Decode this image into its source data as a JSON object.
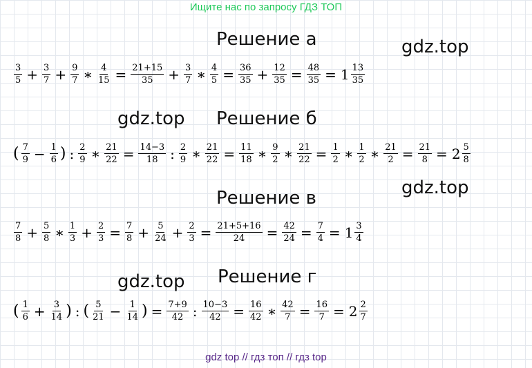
{
  "header_link": "Ищите нас по запросу ГДЗ ТОП",
  "watermark": "gdz.top",
  "footer": "gdz top  //  гдз топ  //  гдз top",
  "sections": [
    {
      "title": "Решение а",
      "equation": [
        {
          "f": [
            "3",
            "5"
          ]
        },
        {
          "o": "+"
        },
        {
          "f": [
            "3",
            "7"
          ]
        },
        {
          "o": "+"
        },
        {
          "f": [
            "9",
            "7"
          ]
        },
        {
          "o": "∗"
        },
        {
          "f": [
            "4",
            "15"
          ]
        },
        {
          "o": "="
        },
        {
          "f": [
            "21+15",
            "35"
          ]
        },
        {
          "o": "+"
        },
        {
          "f": [
            "3",
            "7"
          ]
        },
        {
          "o": "∗"
        },
        {
          "f": [
            "4",
            "5"
          ]
        },
        {
          "o": "="
        },
        {
          "f": [
            "36",
            "35"
          ]
        },
        {
          "o": "+"
        },
        {
          "f": [
            "12",
            "35"
          ]
        },
        {
          "o": "="
        },
        {
          "f": [
            "48",
            "35"
          ]
        },
        {
          "o": "="
        },
        {
          "w": "1"
        },
        {
          "f": [
            "13",
            "35"
          ]
        }
      ]
    },
    {
      "title": "Решение б",
      "equation": [
        {
          "p": "("
        },
        {
          "f": [
            "7",
            "9"
          ]
        },
        {
          "o": "−"
        },
        {
          "f": [
            "1",
            "6"
          ]
        },
        {
          "p": ")"
        },
        {
          "o": ":"
        },
        {
          "f": [
            "2",
            "9"
          ]
        },
        {
          "o": "∗"
        },
        {
          "f": [
            "21",
            "22"
          ]
        },
        {
          "o": "="
        },
        {
          "f": [
            "14−3",
            "18"
          ]
        },
        {
          "o": ":"
        },
        {
          "f": [
            "2",
            "9"
          ]
        },
        {
          "o": "∗"
        },
        {
          "f": [
            "21",
            "22"
          ]
        },
        {
          "o": "="
        },
        {
          "f": [
            "11",
            "18"
          ]
        },
        {
          "o": "∗"
        },
        {
          "f": [
            "9",
            "2"
          ]
        },
        {
          "o": "∗"
        },
        {
          "f": [
            "21",
            "22"
          ]
        },
        {
          "o": "="
        },
        {
          "f": [
            "1",
            "2"
          ]
        },
        {
          "o": "∗"
        },
        {
          "f": [
            "1",
            "2"
          ]
        },
        {
          "o": "∗"
        },
        {
          "f": [
            "21",
            "2"
          ]
        },
        {
          "o": "="
        },
        {
          "f": [
            "21",
            "8"
          ]
        },
        {
          "o": "="
        },
        {
          "w": "2"
        },
        {
          "f": [
            "5",
            "8"
          ]
        }
      ]
    },
    {
      "title": "Решение в",
      "equation": [
        {
          "f": [
            "7",
            "8"
          ]
        },
        {
          "o": "+"
        },
        {
          "f": [
            "5",
            "8"
          ]
        },
        {
          "o": "∗"
        },
        {
          "f": [
            "1",
            "3"
          ]
        },
        {
          "o": "+"
        },
        {
          "f": [
            "2",
            "3"
          ]
        },
        {
          "o": "="
        },
        {
          "f": [
            "7",
            "8"
          ]
        },
        {
          "o": "+"
        },
        {
          "f": [
            "5",
            "24"
          ]
        },
        {
          "o": "+"
        },
        {
          "f": [
            "2",
            "3"
          ]
        },
        {
          "o": "="
        },
        {
          "f": [
            "21+5+16",
            "24"
          ]
        },
        {
          "o": "="
        },
        {
          "f": [
            "42",
            "24"
          ]
        },
        {
          "o": "="
        },
        {
          "f": [
            "7",
            "4"
          ]
        },
        {
          "o": "="
        },
        {
          "w": "1"
        },
        {
          "f": [
            "3",
            "4"
          ]
        }
      ]
    },
    {
      "title": "Решение г",
      "equation": [
        {
          "p": "("
        },
        {
          "f": [
            "1",
            "6"
          ]
        },
        {
          "o": "+"
        },
        {
          "f": [
            "3",
            "14"
          ]
        },
        {
          "p": ")"
        },
        {
          "o": ":"
        },
        {
          "p": "("
        },
        {
          "f": [
            "5",
            "21"
          ]
        },
        {
          "o": "−"
        },
        {
          "f": [
            "1",
            "14"
          ]
        },
        {
          "p": ")"
        },
        {
          "o": "="
        },
        {
          "f": [
            "7+9",
            "42"
          ]
        },
        {
          "o": ":"
        },
        {
          "f": [
            "10−3",
            "42"
          ]
        },
        {
          "o": "="
        },
        {
          "f": [
            "16",
            "42"
          ]
        },
        {
          "o": "∗"
        },
        {
          "f": [
            "42",
            "7"
          ]
        },
        {
          "o": "="
        },
        {
          "f": [
            "16",
            "7"
          ]
        },
        {
          "o": "="
        },
        {
          "w": "2"
        },
        {
          "f": [
            "2",
            "7"
          ]
        }
      ]
    }
  ]
}
